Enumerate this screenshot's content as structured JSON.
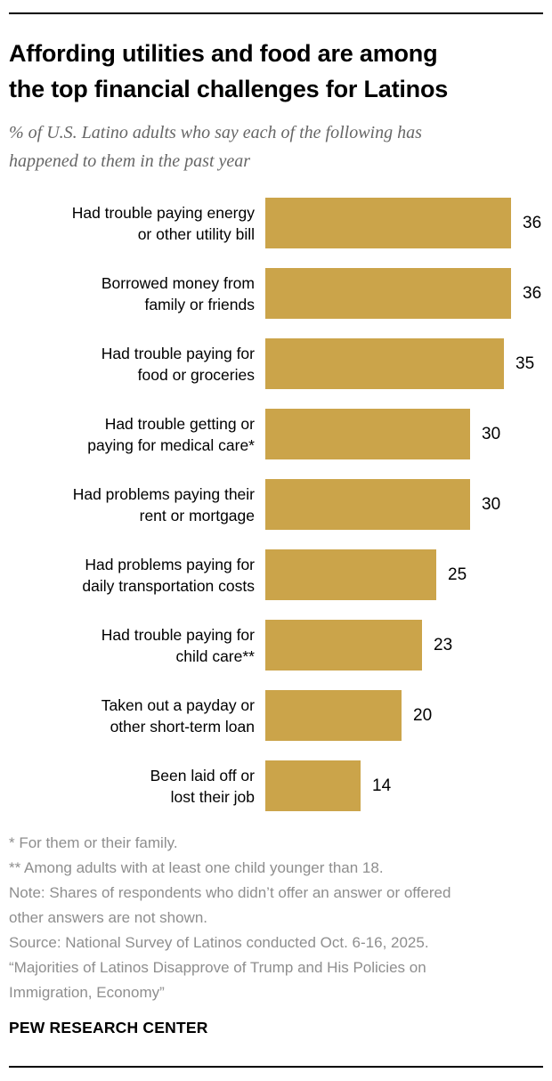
{
  "header": {
    "title": "Affording utilities and food are among\nthe top financial challenges for Latinos",
    "subtitle": "% of U.S. Latino adults who say each of the following has\nhappened to them in the past year"
  },
  "chart_data": {
    "type": "bar",
    "orientation": "horizontal",
    "title": "Affording utilities and food are among the top financial challenges for Latinos",
    "subtitle": "% of U.S. Latino adults who say each of the following has happened to them in the past year",
    "categories": [
      "Had trouble paying energy\nor other utility bill",
      "Borrowed money from\nfamily or friends",
      "Had trouble paying for\nfood or groceries",
      "Had trouble getting or\npaying for medical care*",
      "Had problems paying their\nrent or mortgage",
      "Had problems paying for\ndaily transportation costs",
      "Had trouble paying for\nchild care**",
      "Taken out a payday or\nother short-term loan",
      "Been laid off or\nlost their job"
    ],
    "values": [
      36,
      36,
      35,
      30,
      30,
      25,
      23,
      20,
      14
    ],
    "xlim": [
      0,
      36
    ],
    "grid": false,
    "legend": "none",
    "bar_color": "#cba44a",
    "value_label_color": "#000000"
  },
  "footer": {
    "footnote1": "* For them or their family.",
    "footnote2": "** Among adults with at least one child younger than 18.",
    "note": "Note: Shares of respondents who didn’t offer an answer or offered\nother answers are not shown.",
    "source": "Source: National Survey of Latinos conducted Oct. 6-16, 2025.",
    "report": "“Majorities of Latinos Disapprove of Trump and His Policies on\nImmigration, Economy”",
    "wordmark": "PEW RESEARCH CENTER"
  }
}
